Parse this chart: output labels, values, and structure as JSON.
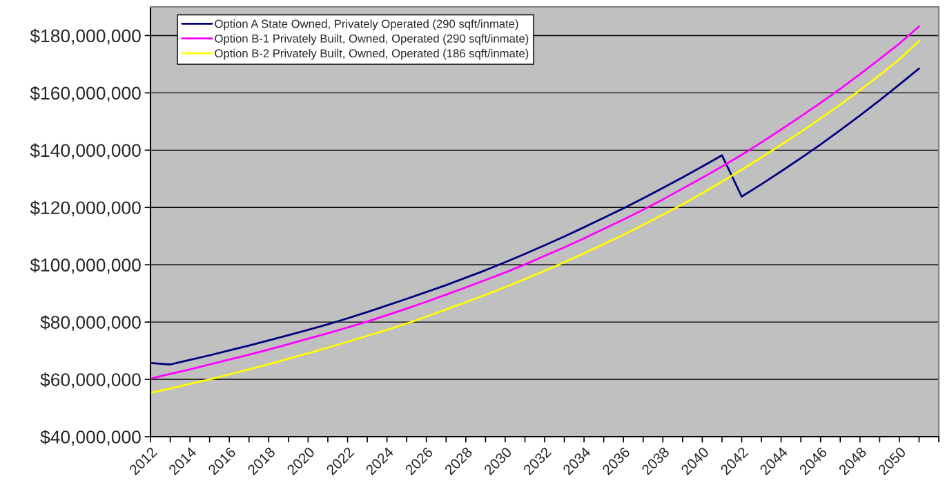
{
  "chart_data": {
    "type": "line",
    "x": [
      2012,
      2013,
      2014,
      2015,
      2016,
      2017,
      2018,
      2019,
      2020,
      2021,
      2022,
      2023,
      2024,
      2025,
      2026,
      2027,
      2028,
      2029,
      2030,
      2031,
      2032,
      2033,
      2034,
      2035,
      2036,
      2037,
      2038,
      2039,
      2040,
      2041,
      2042,
      2043,
      2044,
      2045,
      2046,
      2047,
      2048,
      2049,
      2050,
      2051
    ],
    "series": [
      {
        "name": "Option A State Owned, Privately Operated (290 sqft/inmate)",
        "color": "#000080",
        "values": [
          65700000,
          65200000,
          66800000,
          68400000,
          70100000,
          71800000,
          73600000,
          75400000,
          77300000,
          79200000,
          81300000,
          83500000,
          85800000,
          88100000,
          90500000,
          92900000,
          95500000,
          98100000,
          100900000,
          103800000,
          106800000,
          109900000,
          113100000,
          116400000,
          119700000,
          123200000,
          126800000,
          130500000,
          134300000,
          138200000,
          123800000,
          128100000,
          132600000,
          137200000,
          142000000,
          147000000,
          152100000,
          157400000,
          162900000,
          168500000
        ]
      },
      {
        "name": "Option B-1 Privately Built, Owned, Operated (290 sqft/inmate)",
        "color": "#ff00ff",
        "values": [
          60300000,
          61900000,
          63500000,
          65200000,
          66900000,
          68600000,
          70400000,
          72300000,
          74200000,
          76100000,
          78100000,
          80200000,
          82400000,
          84700000,
          87100000,
          89600000,
          92100000,
          94700000,
          97300000,
          100100000,
          103100000,
          106100000,
          109200000,
          112500000,
          115800000,
          119200000,
          122800000,
          126600000,
          130400000,
          134300000,
          138400000,
          142700000,
          147200000,
          151800000,
          156500000,
          161400000,
          166500000,
          171800000,
          177200000,
          183200000
        ]
      },
      {
        "name": "Option B-2 Privately Built, Owned, Operated (186 sqft/inmate)",
        "color": "#ffff00",
        "values": [
          55300000,
          56800000,
          58400000,
          60000000,
          61700000,
          63500000,
          65300000,
          67200000,
          69100000,
          71100000,
          73100000,
          75200000,
          77300000,
          79500000,
          81900000,
          84400000,
          86900000,
          89500000,
          92200000,
          95000000,
          97900000,
          100900000,
          104000000,
          107200000,
          110500000,
          113900000,
          117500000,
          121100000,
          125000000,
          129000000,
          133200000,
          137500000,
          141900000,
          146400000,
          151100000,
          155900000,
          160900000,
          166200000,
          171700000,
          178100000
        ]
      }
    ],
    "xlim": [
      2012,
      2052
    ],
    "xticks": [
      2012,
      {
        "value": 2013,
        "label": null
      },
      2014,
      {
        "value": 2015,
        "label": null
      },
      2016,
      {
        "value": 2017,
        "label": null
      },
      2018,
      {
        "value": 2019,
        "label": null
      },
      2020,
      {
        "value": 2021,
        "label": null
      },
      2022,
      {
        "value": 2023,
        "label": null
      },
      2024,
      {
        "value": 2025,
        "label": null
      },
      2026,
      {
        "value": 2027,
        "label": null
      },
      2028,
      {
        "value": 2029,
        "label": null
      },
      2030,
      {
        "value": 2031,
        "label": null
      },
      2032,
      {
        "value": 2033,
        "label": null
      },
      2034,
      {
        "value": 2035,
        "label": null
      },
      2036,
      {
        "value": 2037,
        "label": null
      },
      2038,
      {
        "value": 2039,
        "label": null
      },
      2040,
      {
        "value": 2041,
        "label": null
      },
      2042,
      {
        "value": 2043,
        "label": null
      },
      2044,
      {
        "value": 2045,
        "label": null
      },
      2046,
      {
        "value": 2047,
        "label": null
      },
      2048,
      {
        "value": 2049,
        "label": null
      },
      2050,
      {
        "value": 2051,
        "label": null
      },
      {
        "value": 2052,
        "label": null
      }
    ],
    "ylim": [
      40000000,
      190000000
    ],
    "yticks": [
      {
        "value": 40000000,
        "label": "$40,000,000"
      },
      {
        "value": 60000000,
        "label": "$60,000,000"
      },
      {
        "value": 80000000,
        "label": "$80,000,000"
      },
      {
        "value": 100000000,
        "label": "$100,000,000"
      },
      {
        "value": 120000000,
        "label": "$120,000,000"
      },
      {
        "value": 140000000,
        "label": "$140,000,000"
      },
      {
        "value": 160000000,
        "label": "$160,000,000"
      },
      {
        "value": 180000000,
        "label": "$180,000,000"
      }
    ],
    "grid": "y",
    "legend": "top left",
    "marker": "none",
    "line_style": "solid"
  }
}
